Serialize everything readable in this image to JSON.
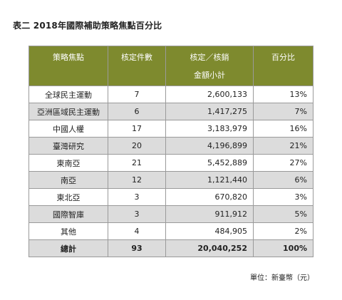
{
  "title": "表二  2018年國際補助策略焦點百分比",
  "headers": {
    "category": "策略焦點",
    "count": "核定件數",
    "amount_line1": "核定／核銷",
    "amount_line2": "金額小計",
    "percent": "百分比"
  },
  "rows": [
    {
      "category": "全球民主運動",
      "count": "7",
      "amount": "2,600,133",
      "percent": "13%"
    },
    {
      "category": "亞洲區域民主運動",
      "count": "6",
      "amount": "1,417,275",
      "percent": "7%"
    },
    {
      "category": "中國人權",
      "count": "17",
      "amount": "3,183,979",
      "percent": "16%"
    },
    {
      "category": "臺灣研究",
      "count": "20",
      "amount": "4,196,899",
      "percent": "21%"
    },
    {
      "category": "東南亞",
      "count": "21",
      "amount": "5,452,889",
      "percent": "27%"
    },
    {
      "category": "南亞",
      "count": "12",
      "amount": "1,121,440",
      "percent": "6%"
    },
    {
      "category": "東北亞",
      "count": "3",
      "amount": "670,820",
      "percent": "3%"
    },
    {
      "category": "國際智庫",
      "count": "3",
      "amount": "911,912",
      "percent": "5%"
    },
    {
      "category": "其他",
      "count": "4",
      "amount": "484,905",
      "percent": "2%"
    }
  ],
  "total": {
    "label": "總計",
    "count": "93",
    "amount": "20,040,252",
    "percent": "100%"
  },
  "unit_note": "單位：新臺幣（元）",
  "colors": {
    "header_background": "#7e8a2e",
    "header_text": "#ffffff",
    "stripe_background": "#dcdcdc"
  }
}
